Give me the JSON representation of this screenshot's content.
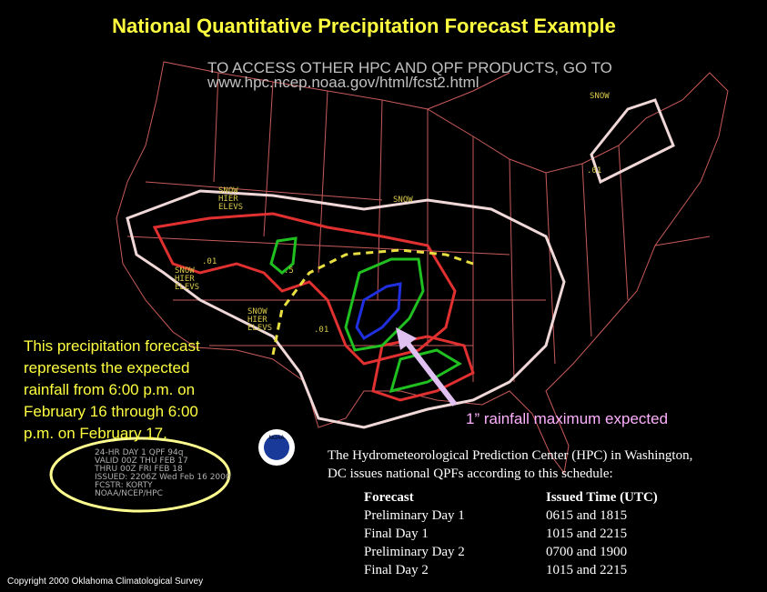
{
  "header": {
    "title": "National Quantitative Precipitation Forecast Example",
    "access_line_1": "TO ACCESS OTHER HPC AND QPF PRODUCTS, GO TO",
    "access_line_2": "www.hpc.ncep.noaa.gov/html/fcst2.html"
  },
  "map_labels": [
    "SNOW",
    ".01",
    "SNOW",
    "HIER",
    "ELEVS",
    "SNOW",
    "SNOW",
    ".01",
    "HIER",
    "ELEVS",
    ".5",
    "SNOW",
    "HIER",
    "ELEVS",
    ".01"
  ],
  "description": [
    "This precipitation forecast",
    "represents the expected",
    "rainfall  from 6:00 p.m. on",
    "February 16 through 6:00",
    "p.m. on February 17."
  ],
  "annotation": "1” rainfall maximum expected",
  "stamp": [
    "24-HR DAY 1 QPF  94q",
    "VALID 00Z THU FEB 17",
    "THRU 00Z FRI FEB 18",
    "ISSUED: 2206Z Wed Feb 16 2000",
    "FCSTR: KORTY",
    "NOAA/NCEP/HPC"
  ],
  "logo": "NOAA",
  "schedule": {
    "intro": [
      "The Hydrometeorological Prediction Center (HPC) in Washington,",
      "DC issues national QPFs according to this schedule:"
    ],
    "columns": [
      "Forecast",
      "Issued Time (UTC)"
    ],
    "rows": [
      [
        "Preliminary Day 1",
        "0615 and 1815"
      ],
      [
        "Final Day 1",
        "1015 and 2215"
      ],
      [
        "Preliminary Day 2",
        "0700 and 1900"
      ],
      [
        "Final Day 2",
        "1015 and 2215"
      ]
    ]
  },
  "copyright": "Copyright 2000 Oklahoma Climatological Survey"
}
